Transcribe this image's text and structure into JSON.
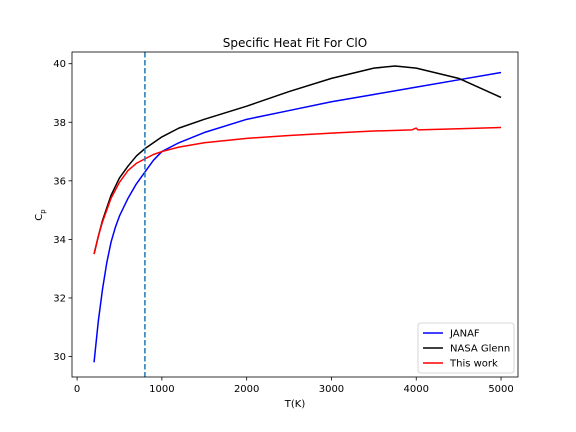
{
  "chart_data": {
    "type": "line",
    "title": "Specific Heat Fit For ClO",
    "xlabel": "T(K)",
    "ylabel_main": "C",
    "ylabel_sub": "p",
    "xlim": [
      -60,
      5200
    ],
    "ylim": [
      29.3,
      40.4
    ],
    "xticks": [
      0,
      1000,
      2000,
      3000,
      4000,
      5000
    ],
    "yticks": [
      30,
      32,
      34,
      36,
      38,
      40
    ],
    "vline": {
      "x": 800,
      "color": "#1f77b4",
      "style": "dashed"
    },
    "legend_position": "lower right",
    "grid": false,
    "series": [
      {
        "name": "JANAF",
        "color": "#0000ff",
        "x": [
          200,
          250,
          300,
          350,
          400,
          450,
          500,
          600,
          700,
          800,
          900,
          1000,
          1200,
          1500,
          2000,
          2500,
          3000,
          3500,
          4000,
          4500,
          5000
        ],
        "y": [
          29.8,
          31.2,
          32.3,
          33.2,
          33.9,
          34.4,
          34.8,
          35.4,
          35.9,
          36.3,
          36.7,
          37.0,
          37.3,
          37.65,
          38.1,
          38.4,
          38.7,
          38.95,
          39.2,
          39.45,
          39.7
        ]
      },
      {
        "name": "NASA Glenn",
        "color": "#000000",
        "x": [
          200,
          250,
          300,
          400,
          500,
          600,
          700,
          800,
          900,
          1000,
          1200,
          1500,
          2000,
          2500,
          3000,
          3500,
          3750,
          4000,
          4500,
          5000
        ],
        "y": [
          33.5,
          34.1,
          34.65,
          35.5,
          36.1,
          36.5,
          36.85,
          37.1,
          37.3,
          37.5,
          37.8,
          38.1,
          38.55,
          39.05,
          39.5,
          39.85,
          39.92,
          39.85,
          39.5,
          38.85
        ]
      },
      {
        "name": "This work",
        "color": "#ff0000",
        "x": [
          200,
          250,
          300,
          400,
          500,
          600,
          700,
          800,
          900,
          1000,
          1200,
          1500,
          2000,
          2500,
          3000,
          3500,
          3950,
          3980,
          4000,
          4020,
          4500,
          5000
        ],
        "y": [
          33.5,
          34.1,
          34.6,
          35.4,
          35.95,
          36.35,
          36.6,
          36.75,
          36.9,
          37.0,
          37.15,
          37.3,
          37.45,
          37.55,
          37.63,
          37.7,
          37.74,
          37.78,
          37.8,
          37.74,
          37.78,
          37.82
        ]
      }
    ]
  }
}
